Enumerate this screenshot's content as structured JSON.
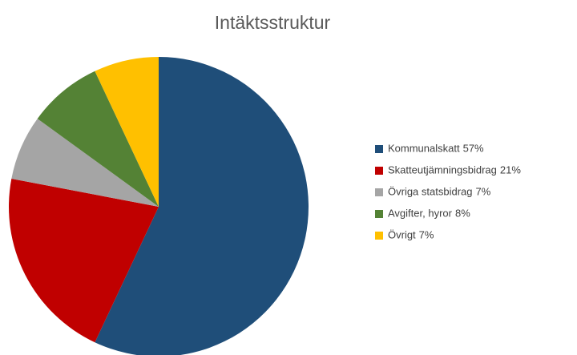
{
  "chart_data": {
    "type": "pie",
    "title": "Intäktsstruktur",
    "categories": [
      "Kommunalskatt",
      "Skatteutjämningsbidrag",
      "Övriga statsbidrag",
      "Avgifter, hyror",
      "Övrigt"
    ],
    "values": [
      57,
      21,
      7,
      8,
      7
    ],
    "value_labels": [
      "57%",
      "21%",
      "7%",
      "8%",
      "7%"
    ],
    "colors": [
      "#1f4e79",
      "#c00000",
      "#a5a5a5",
      "#548235",
      "#ffc000"
    ],
    "legend": "right"
  }
}
